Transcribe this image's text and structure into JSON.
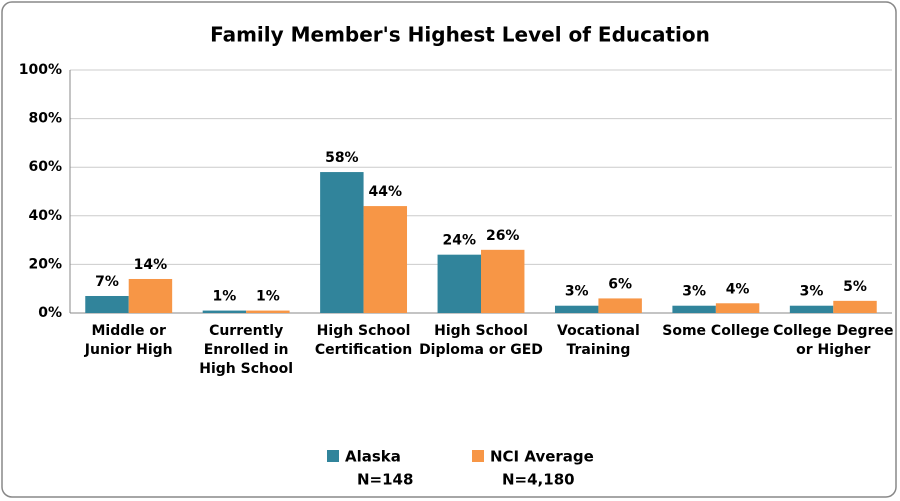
{
  "chart_data": {
    "type": "bar",
    "title": "Family Member's Highest Level of Education",
    "categories": [
      "Middle or Junior High",
      "Currently Enrolled in High School",
      "High School Certification",
      "High School Diploma or GED",
      "Vocational Training",
      "Some College",
      "College Degree or Higher"
    ],
    "series": [
      {
        "name": "Alaska",
        "note": "N=148",
        "color": "#31849b",
        "values": [
          7,
          1,
          58,
          24,
          3,
          3,
          3
        ],
        "value_labels": [
          "7%",
          "1%",
          "58%",
          "24%",
          "3%",
          "3%",
          "3%"
        ]
      },
      {
        "name": "NCI Average",
        "note": "N=4,180",
        "color": "#f79646",
        "values": [
          14,
          1,
          44,
          26,
          6,
          4,
          5
        ],
        "value_labels": [
          "14%",
          "1%",
          "44%",
          "26%",
          "6%",
          "4%",
          "5%"
        ]
      }
    ],
    "ylim": [
      0,
      100
    ],
    "yticks": [
      {
        "value": 0,
        "label": "0%"
      },
      {
        "value": 20,
        "label": "20%"
      },
      {
        "value": 40,
        "label": "40%"
      },
      {
        "value": 60,
        "label": "60%"
      },
      {
        "value": 80,
        "label": "80%"
      },
      {
        "value": 100,
        "label": "100%"
      }
    ],
    "grid": true
  }
}
